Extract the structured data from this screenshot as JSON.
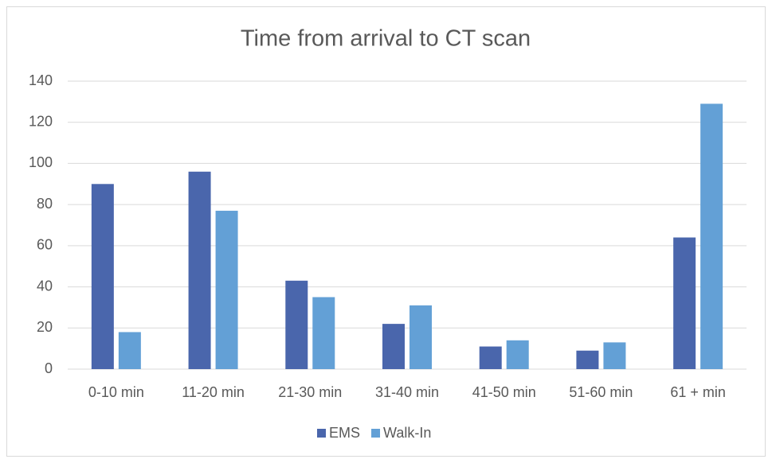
{
  "chart_data": {
    "type": "bar",
    "title": "Time from arrival to CT  scan",
    "categories": [
      "0-10 min",
      "11-20 min",
      "21-30 min",
      "31-40 min",
      "41-50 min",
      "51-60 min",
      "61 + min"
    ],
    "series": [
      {
        "name": "EMS",
        "color": "#4a66ac",
        "values": [
          90,
          96,
          43,
          22,
          11,
          9,
          64
        ]
      },
      {
        "name": "Walk-In",
        "color": "#63a0d6",
        "values": [
          18,
          77,
          35,
          31,
          14,
          13,
          129
        ]
      }
    ],
    "ylim": [
      0,
      140
    ],
    "yticks": [
      0,
      20,
      40,
      60,
      80,
      100,
      120,
      140
    ],
    "grid": true,
    "legend": "bottom"
  }
}
